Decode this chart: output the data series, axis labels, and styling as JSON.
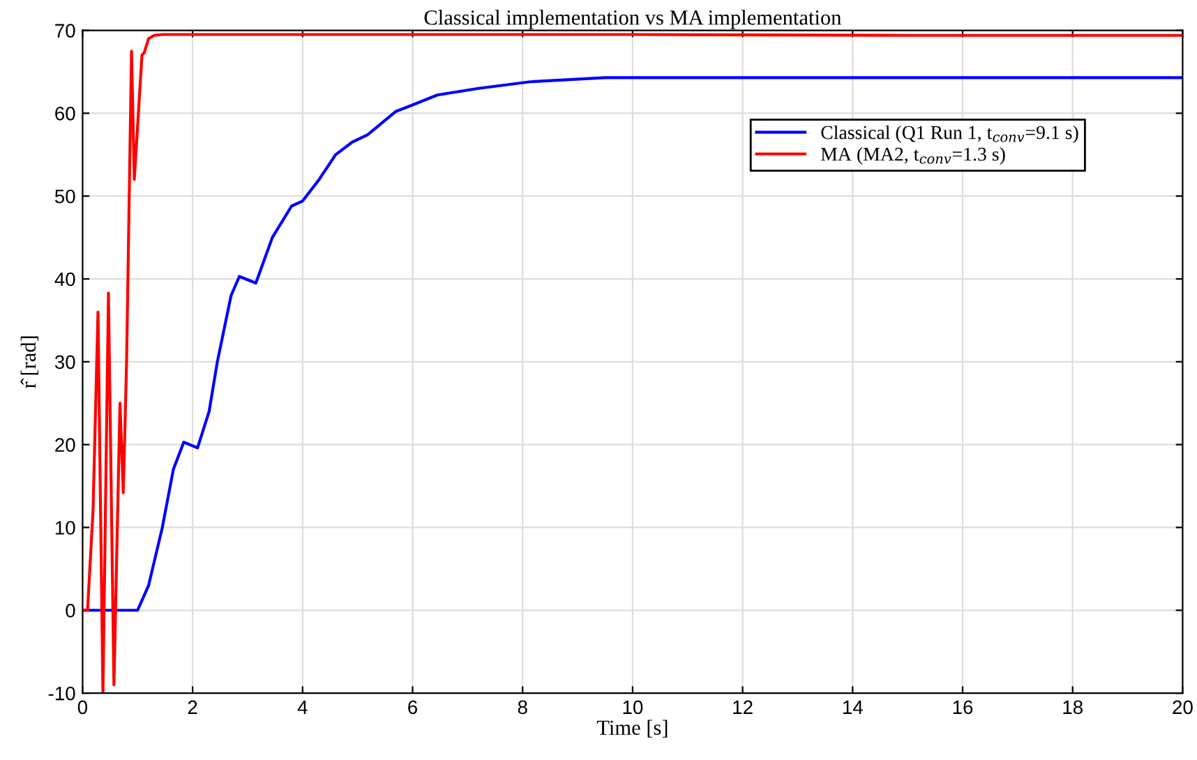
{
  "chart_data": {
    "type": "line",
    "title": "Classical implementation vs MA implementation",
    "xlabel": "Time [s]",
    "ylabel": "r̂ [rad]",
    "series": [
      {
        "name": "Classical (Q1 Run 1, t$_{conv}$=9.1 s)",
        "color": "#0000ff",
        "x": [
          0,
          1.0,
          1.2,
          1.45,
          1.65,
          1.84,
          2.09,
          2.3,
          2.45,
          2.7,
          2.85,
          3.15,
          3.45,
          3.8,
          4.0,
          4.3,
          4.6,
          4.9,
          5.18,
          5.69,
          6.0,
          6.45,
          7.2,
          8.14,
          9.5,
          12,
          14,
          16,
          18,
          20
        ],
        "values": [
          0,
          0,
          3,
          10,
          17,
          20.3,
          19.6,
          24,
          30,
          38,
          40.3,
          39.5,
          45,
          48.8,
          49.4,
          52,
          55,
          56.5,
          57.4,
          60.2,
          61,
          62.2,
          63,
          63.8,
          64.3,
          64.3,
          64.3,
          64.3,
          64.3,
          64.3
        ]
      },
      {
        "name": "MA (MA2, t$_{conv}$=1.3 s)",
        "color": "#ff0000",
        "x": [
          0,
          0.09,
          0.19,
          0.28,
          0.37,
          0.47,
          0.57,
          0.68,
          0.74,
          0.8,
          0.89,
          0.94,
          1.08,
          1.12,
          1.2,
          1.3,
          1.45,
          2,
          5,
          10,
          15,
          20
        ],
        "values": [
          0,
          0,
          12,
          36,
          -10,
          38.3,
          -9,
          25,
          14.2,
          30,
          67.5,
          52,
          67,
          67.3,
          69,
          69.4,
          69.5,
          69.5,
          69.5,
          69.5,
          69.4,
          69.4
        ]
      }
    ],
    "xlim": [
      0,
      20
    ],
    "ylim": [
      -10,
      70
    ],
    "xticks": [
      0,
      2,
      4,
      6,
      8,
      10,
      12,
      14,
      16,
      18,
      20
    ],
    "yticks": [
      -10,
      0,
      10,
      20,
      30,
      40,
      50,
      60,
      70
    ],
    "grid": true,
    "legend": "top right"
  }
}
